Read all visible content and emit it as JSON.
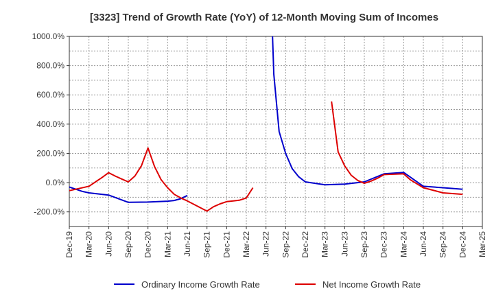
{
  "chart_data": {
    "type": "line",
    "title": "[3323]  Trend of Growth Rate (YoY) of 12-Month Moving Sum of Incomes",
    "xlabel": "",
    "ylabel": "",
    "ylim": [
      -300,
      1000
    ],
    "yticks": [
      1000,
      800,
      600,
      400,
      200,
      0,
      -200
    ],
    "ytick_labels": [
      "1000.0%",
      "800.0%",
      "600.0%",
      "400.0%",
      "200.0%",
      "0.0%",
      "-200.0%"
    ],
    "x_categories": [
      "Dec-19",
      "Mar-20",
      "Jun-20",
      "Sep-20",
      "Dec-20",
      "Mar-21",
      "Jun-21",
      "Sep-21",
      "Dec-21",
      "Mar-22",
      "Jun-22",
      "Sep-22",
      "Dec-22",
      "Mar-23",
      "Jun-23",
      "Sep-23",
      "Dec-23",
      "Mar-24",
      "Jun-24",
      "Sep-24",
      "Dec-24",
      "Mar-25"
    ],
    "grid": true,
    "legend_position": "bottom",
    "series": [
      {
        "name": "Ordinary Income Growth Rate",
        "color": "#0000cc",
        "points": [
          {
            "t": "Dec-19",
            "y": -30
          },
          {
            "t": "Jan-20",
            "y": -45
          },
          {
            "t": "Feb-20",
            "y": -60
          },
          {
            "t": "Mar-20",
            "y": -70
          },
          {
            "t": "Jun-20",
            "y": -85
          },
          {
            "t": "Sep-20",
            "y": -135
          },
          {
            "t": "Dec-20",
            "y": -133
          },
          {
            "t": "Mar-21",
            "y": -127
          },
          {
            "t": "Apr-21",
            "y": -122
          },
          {
            "t": "May-21",
            "y": -110
          },
          {
            "t": "Jun-21",
            "y": -88
          }
        ],
        "points_2": [
          {
            "t": "Jul-22",
            "y": 1000
          },
          {
            "t": "Jul-22+",
            "y": 740
          },
          {
            "t": "Aug-22",
            "y": 350
          },
          {
            "t": "Sep-22",
            "y": 200
          },
          {
            "t": "Oct-22",
            "y": 95
          },
          {
            "t": "Nov-22",
            "y": 40
          },
          {
            "t": "Dec-22",
            "y": 5
          },
          {
            "t": "Mar-23",
            "y": -15
          },
          {
            "t": "Jun-23",
            "y": -10
          },
          {
            "t": "Sep-23",
            "y": 5
          },
          {
            "t": "Dec-23",
            "y": 60
          },
          {
            "t": "Mar-24",
            "y": 70
          },
          {
            "t": "Jun-24",
            "y": -25
          },
          {
            "t": "Sep-24",
            "y": -35
          },
          {
            "t": "Dec-24",
            "y": -45
          }
        ]
      },
      {
        "name": "Net Income Growth Rate",
        "color": "#dd0000",
        "points": [
          {
            "t": "Dec-19",
            "y": -55
          },
          {
            "t": "Mar-20",
            "y": -25
          },
          {
            "t": "Apr-20",
            "y": 5
          },
          {
            "t": "May-20",
            "y": 35
          },
          {
            "t": "Jun-20",
            "y": 68
          },
          {
            "t": "Jul-20",
            "y": 45
          },
          {
            "t": "Aug-20",
            "y": 25
          },
          {
            "t": "Sep-20",
            "y": 5
          },
          {
            "t": "Oct-20",
            "y": 45
          },
          {
            "t": "Nov-20",
            "y": 115
          },
          {
            "t": "Dec-20",
            "y": 237
          },
          {
            "t": "Jan-21",
            "y": 110
          },
          {
            "t": "Feb-21",
            "y": 20
          },
          {
            "t": "Mar-21",
            "y": -35
          },
          {
            "t": "Apr-21",
            "y": -80
          },
          {
            "t": "May-21",
            "y": -105
          },
          {
            "t": "Jun-21",
            "y": -125
          },
          {
            "t": "Sep-21",
            "y": -195
          },
          {
            "t": "Oct-21",
            "y": -165
          },
          {
            "t": "Nov-21",
            "y": -145
          },
          {
            "t": "Dec-21",
            "y": -130
          },
          {
            "t": "Jan-22",
            "y": -125
          },
          {
            "t": "Feb-22",
            "y": -120
          },
          {
            "t": "Mar-22",
            "y": -105
          },
          {
            "t": "Apr-22",
            "y": -35
          }
        ],
        "points_2": [
          {
            "t": "Apr-23",
            "y": 555
          },
          {
            "t": "May-23",
            "y": 210
          },
          {
            "t": "Jun-23",
            "y": 115
          },
          {
            "t": "Jul-23",
            "y": 50
          },
          {
            "t": "Aug-23",
            "y": 15
          },
          {
            "t": "Sep-23",
            "y": -5
          },
          {
            "t": "Oct-23",
            "y": 10
          },
          {
            "t": "Nov-23",
            "y": 30
          },
          {
            "t": "Dec-23",
            "y": 55
          },
          {
            "t": "Mar-24",
            "y": 60
          },
          {
            "t": "Apr-24",
            "y": 20
          },
          {
            "t": "Jun-24",
            "y": -35
          },
          {
            "t": "Sep-24",
            "y": -70
          },
          {
            "t": "Dec-24",
            "y": -80
          }
        ]
      }
    ]
  }
}
